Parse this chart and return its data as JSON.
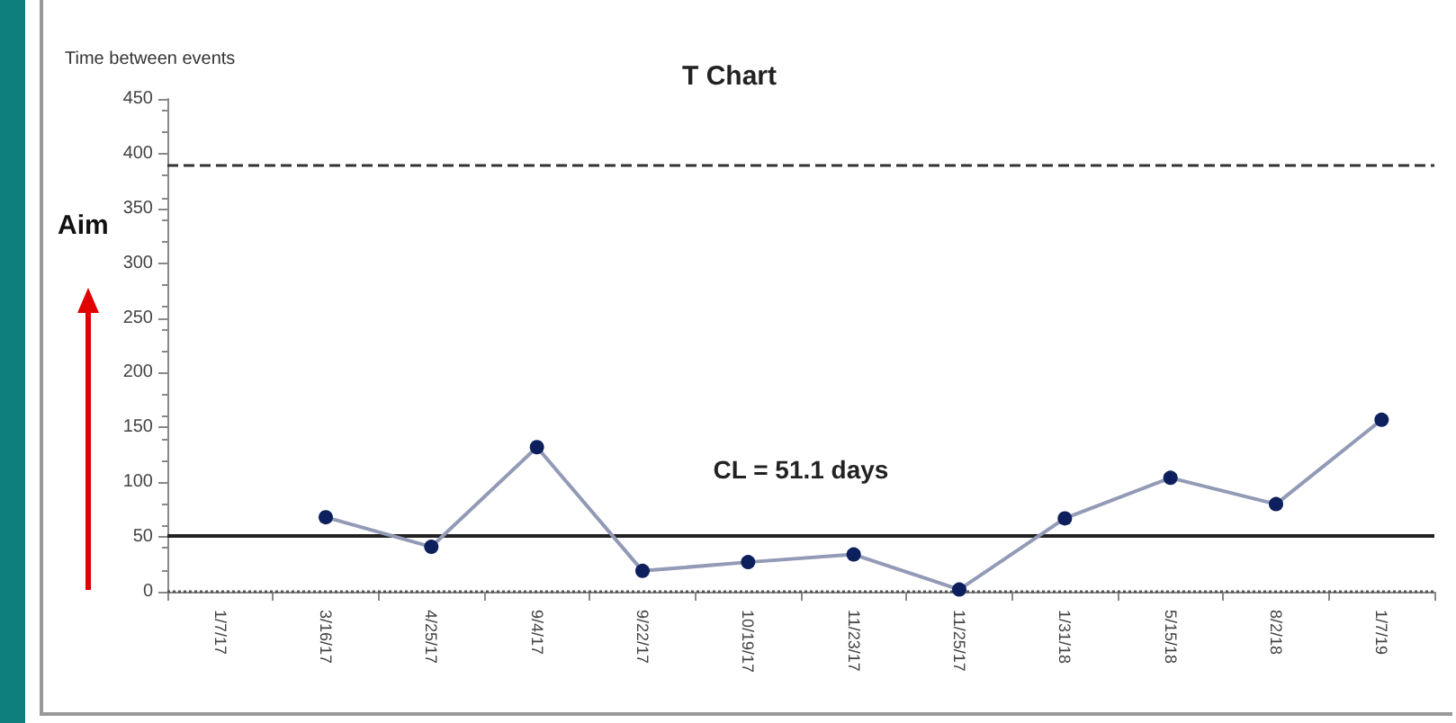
{
  "chart_data": {
    "type": "line",
    "title": "T Chart",
    "ylabel": "Time between events",
    "categories": [
      "1/7/17",
      "3/16/17",
      "4/25/17",
      "9/4/17",
      "9/22/17",
      "10/19/17",
      "11/23/17",
      "11/25/17",
      "1/31/18",
      "5/15/18",
      "8/2/18",
      "1/7/19"
    ],
    "series": [
      {
        "color": "#0d1f5c",
        "values": [
          null,
          68,
          41,
          132,
          19,
          27,
          34,
          2,
          67,
          104,
          80,
          157
        ]
      }
    ],
    "ylim": [
      0,
      450
    ],
    "yticks": [
      0,
      50,
      100,
      150,
      200,
      250,
      300,
      350,
      400,
      450
    ],
    "ref_lines": [
      {
        "axis": "y",
        "value": 390,
        "label": null,
        "color": "#333333",
        "line_style": "dashed"
      },
      {
        "axis": "y",
        "value": 51.1,
        "label": "CL = 51.1 days",
        "color": "#222222",
        "line_style": "solid"
      },
      {
        "axis": "y",
        "value": 0,
        "label": null,
        "color": "#555555",
        "line_style": "dotted"
      }
    ],
    "annotations": [
      "Aim"
    ],
    "grid": false,
    "marker": "circle",
    "line_style": "solid"
  }
}
